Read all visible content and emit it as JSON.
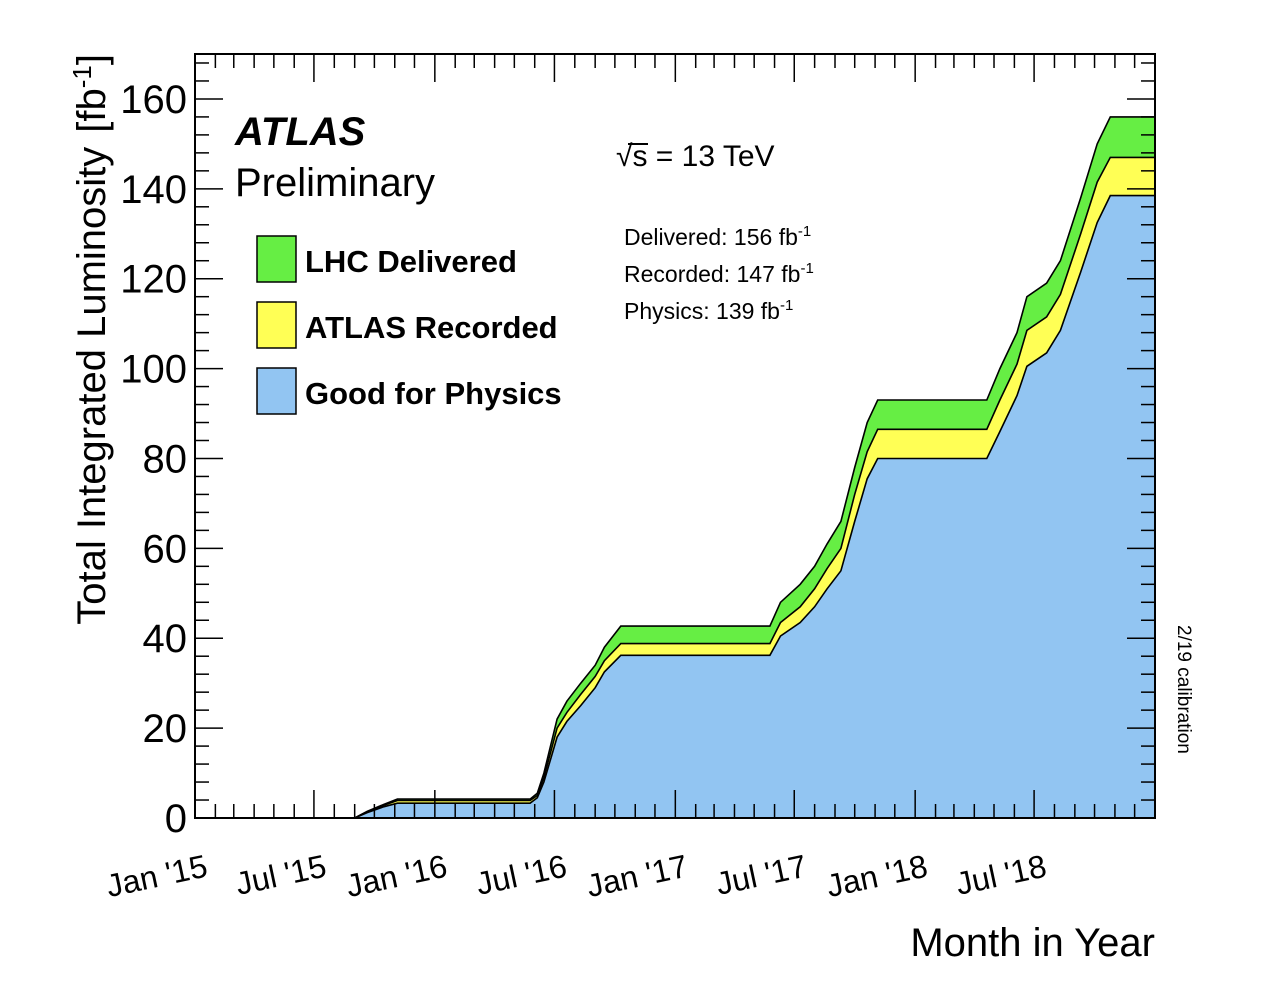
{
  "chart_data": {
    "type": "area",
    "title": "",
    "xlabel": "Month in Year",
    "ylabel": "Total Integrated Luminosity",
    "ylabel_unit_base": "[fb",
    "ylabel_unit_sup": "-1",
    "ylabel_unit_close": "]",
    "ylim": [
      0,
      170
    ],
    "yticks": [
      0,
      20,
      40,
      60,
      80,
      100,
      120,
      140,
      160
    ],
    "xlim": [
      "2015-01-01",
      "2019-01-01"
    ],
    "xticks": [
      {
        "date": "2015-01-01",
        "label": "Jan '15"
      },
      {
        "date": "2015-07-01",
        "label": "Jul '15"
      },
      {
        "date": "2016-01-01",
        "label": "Jan '16"
      },
      {
        "date": "2016-07-01",
        "label": "Jul '16"
      },
      {
        "date": "2017-01-01",
        "label": "Jan '17"
      },
      {
        "date": "2017-07-01",
        "label": "Jul '17"
      },
      {
        "date": "2018-01-01",
        "label": "Jan '18"
      },
      {
        "date": "2018-07-01",
        "label": "Jul '18"
      }
    ],
    "legend_position": "top-left",
    "grid": false,
    "series": [
      {
        "name": "LHC Delivered",
        "color": "#66ee44",
        "points": [
          [
            "2015-01-01",
            0
          ],
          [
            "2015-09-01",
            0
          ],
          [
            "2015-09-20",
            1.5
          ],
          [
            "2015-10-15",
            3
          ],
          [
            "2015-11-05",
            4.2
          ],
          [
            "2016-05-25",
            4.2
          ],
          [
            "2016-06-05",
            5.5
          ],
          [
            "2016-06-15",
            10
          ],
          [
            "2016-06-25",
            16
          ],
          [
            "2016-07-05",
            22
          ],
          [
            "2016-07-20",
            26
          ],
          [
            "2016-08-10",
            30
          ],
          [
            "2016-09-01",
            34
          ],
          [
            "2016-09-15",
            38
          ],
          [
            "2016-10-10",
            42.7
          ],
          [
            "2017-05-25",
            42.7
          ],
          [
            "2017-06-10",
            48
          ],
          [
            "2017-07-10",
            52
          ],
          [
            "2017-08-01",
            56
          ],
          [
            "2017-08-20",
            61
          ],
          [
            "2017-09-10",
            66
          ],
          [
            "2017-10-01",
            78
          ],
          [
            "2017-10-20",
            88
          ],
          [
            "2017-11-05",
            93
          ],
          [
            "2018-04-20",
            93
          ],
          [
            "2018-05-10",
            100
          ],
          [
            "2018-06-05",
            108
          ],
          [
            "2018-06-20",
            116
          ],
          [
            "2018-07-20",
            119
          ],
          [
            "2018-08-10",
            124
          ],
          [
            "2018-09-10",
            138
          ],
          [
            "2018-10-05",
            150
          ],
          [
            "2018-10-25",
            156
          ],
          [
            "2019-01-01",
            156
          ]
        ]
      },
      {
        "name": "ATLAS Recorded",
        "color": "#ffff55",
        "points": [
          [
            "2015-01-01",
            0
          ],
          [
            "2015-09-01",
            0
          ],
          [
            "2015-09-20",
            1.4
          ],
          [
            "2015-10-15",
            2.8
          ],
          [
            "2015-11-05",
            3.9
          ],
          [
            "2016-05-25",
            3.9
          ],
          [
            "2016-06-05",
            5
          ],
          [
            "2016-06-15",
            9
          ],
          [
            "2016-06-25",
            14.5
          ],
          [
            "2016-07-05",
            20
          ],
          [
            "2016-07-20",
            23.5
          ],
          [
            "2016-08-10",
            27.5
          ],
          [
            "2016-09-01",
            31.5
          ],
          [
            "2016-09-15",
            35
          ],
          [
            "2016-10-10",
            38.8
          ],
          [
            "2017-05-25",
            38.8
          ],
          [
            "2017-06-10",
            43.5
          ],
          [
            "2017-07-10",
            47
          ],
          [
            "2017-08-01",
            51
          ],
          [
            "2017-08-20",
            55.5
          ],
          [
            "2017-09-10",
            60
          ],
          [
            "2017-10-01",
            72
          ],
          [
            "2017-10-20",
            81.5
          ],
          [
            "2017-11-05",
            86.5
          ],
          [
            "2018-04-20",
            86.5
          ],
          [
            "2018-05-10",
            93
          ],
          [
            "2018-06-05",
            101
          ],
          [
            "2018-06-20",
            108.5
          ],
          [
            "2018-07-20",
            111.5
          ],
          [
            "2018-08-10",
            116.5
          ],
          [
            "2018-09-10",
            130
          ],
          [
            "2018-10-05",
            141.5
          ],
          [
            "2018-10-25",
            147
          ],
          [
            "2019-01-01",
            147
          ]
        ]
      },
      {
        "name": "Good for Physics",
        "color": "#92c5f2",
        "points": [
          [
            "2015-01-01",
            0
          ],
          [
            "2015-09-01",
            0
          ],
          [
            "2015-09-20",
            1.2
          ],
          [
            "2015-10-15",
            2.5
          ],
          [
            "2015-11-05",
            3.3
          ],
          [
            "2016-05-25",
            3.3
          ],
          [
            "2016-06-05",
            4.5
          ],
          [
            "2016-06-15",
            8
          ],
          [
            "2016-06-25",
            13
          ],
          [
            "2016-07-05",
            18
          ],
          [
            "2016-07-20",
            21.5
          ],
          [
            "2016-08-10",
            25
          ],
          [
            "2016-09-01",
            29
          ],
          [
            "2016-09-15",
            32.5
          ],
          [
            "2016-10-10",
            36.2
          ],
          [
            "2017-05-25",
            36.2
          ],
          [
            "2017-06-10",
            40.5
          ],
          [
            "2017-07-10",
            43.5
          ],
          [
            "2017-08-01",
            47
          ],
          [
            "2017-08-20",
            51
          ],
          [
            "2017-09-10",
            55
          ],
          [
            "2017-10-01",
            66
          ],
          [
            "2017-10-20",
            75.5
          ],
          [
            "2017-11-05",
            80
          ],
          [
            "2018-04-20",
            80
          ],
          [
            "2018-05-10",
            86
          ],
          [
            "2018-06-05",
            94
          ],
          [
            "2018-06-20",
            100.5
          ],
          [
            "2018-07-20",
            103.5
          ],
          [
            "2018-08-10",
            108.5
          ],
          [
            "2018-09-10",
            121.5
          ],
          [
            "2018-10-05",
            132.5
          ],
          [
            "2018-10-25",
            138.5
          ],
          [
            "2019-01-01",
            138.5
          ]
        ]
      }
    ],
    "annotations": {
      "experiment": "ATLAS",
      "status": "Preliminary",
      "energy_sqrt": "√",
      "energy_rest": "s = 13 TeV",
      "summary": [
        {
          "base": "Delivered: 156 fb",
          "sup": "-1"
        },
        {
          "base": "Recorded: 147 fb",
          "sup": "-1"
        },
        {
          "base": "Physics: 139 fb",
          "sup": "-1"
        }
      ],
      "side_note": "2/19 calibration"
    }
  }
}
